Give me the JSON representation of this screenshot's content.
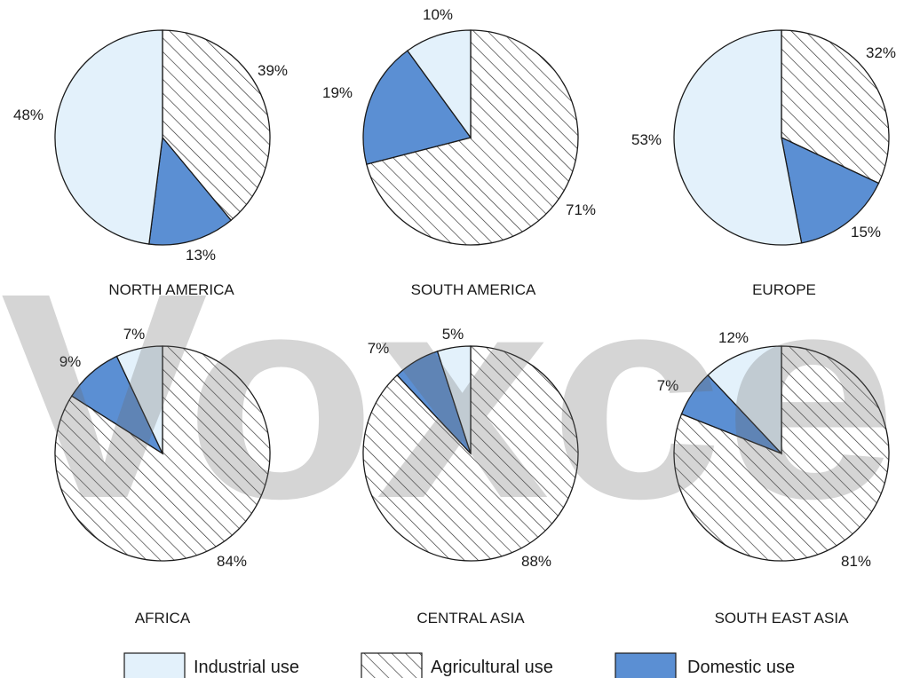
{
  "chart_data": {
    "type": "pie",
    "categories": [
      "Industrial use",
      "Agricultural use",
      "Domestic use"
    ],
    "colors": {
      "Industrial use": "#e3f1fb",
      "Agricultural use": "#ffffff",
      "Domestic use": "#5b8fd3"
    },
    "hatch": {
      "Agricultural use": "diagonal"
    },
    "charts": [
      {
        "region": "NORTH AMERICA",
        "values": {
          "Industrial use": 48,
          "Agricultural use": 39,
          "Domestic use": 13
        },
        "labels": [
          "48%",
          "39%",
          "13%"
        ]
      },
      {
        "region": "SOUTH AMERICA",
        "values": {
          "Industrial use": 10,
          "Agricultural use": 71,
          "Domestic use": 19
        },
        "labels": [
          "10%",
          "71%",
          "19%"
        ]
      },
      {
        "region": "EUROPE",
        "values": {
          "Industrial use": 53,
          "Agricultural use": 32,
          "Domestic use": 15
        },
        "labels": [
          "53%",
          "32%",
          "15%"
        ]
      },
      {
        "region": "AFRICA",
        "values": {
          "Industrial use": 7,
          "Agricultural use": 84,
          "Domestic use": 9
        },
        "labels": [
          "7%",
          "84%",
          "9%"
        ]
      },
      {
        "region": "CENTRAL ASIA",
        "values": {
          "Industrial use": 5,
          "Agricultural use": 88,
          "Domestic use": 7
        },
        "labels": [
          "5%",
          "88%",
          "7%"
        ]
      },
      {
        "region": "SOUTH EAST ASIA",
        "values": {
          "Industrial use": 12,
          "Agricultural use": 81,
          "Domestic use": 7
        },
        "labels": [
          "12%",
          "81%",
          "7%"
        ]
      }
    ],
    "legend": [
      "Industrial use",
      "Agricultural use",
      "Domestic use"
    ],
    "legend_position": "bottom"
  },
  "watermark": {
    "text": "Voxce"
  }
}
